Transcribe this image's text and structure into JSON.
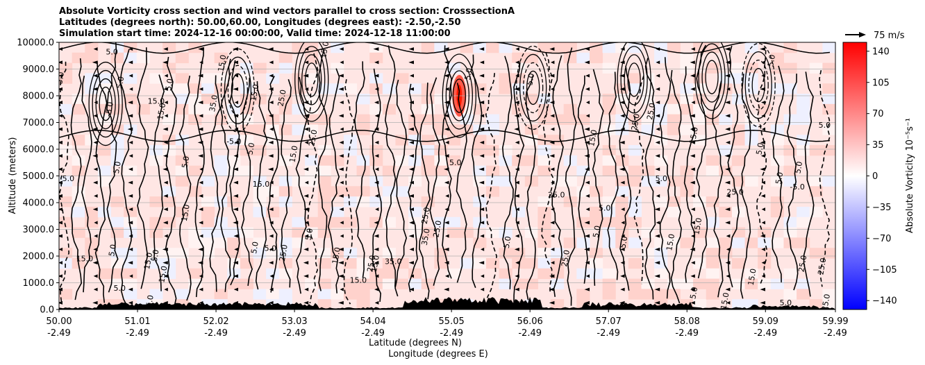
{
  "chart_data": {
    "type": "heatmap",
    "title_lines": [
      "Absolute Vorticity cross section and wind vectors parallel to cross section: CrosssectionA",
      "Latitudes (degrees north): 50.00,60.00, Longitudes (degrees east): -2.50,-2.50",
      "Simulation start time: 2024-12-16 00:00:00, Valid time: 2024-12-18 11:00:00"
    ],
    "ylabel": "Altitude (meters)",
    "xlabel_lat": "Latitude (degrees N)",
    "xlabel_lon": "Longitude (degrees E)",
    "ylim": [
      0,
      10000
    ],
    "y_ticks": [
      "0.0",
      "1000.0",
      "2000.0",
      "3000.0",
      "4000.0",
      "5000.0",
      "6000.0",
      "7000.0",
      "8000.0",
      "9000.0",
      "10000.0"
    ],
    "y_tick_values": [
      0,
      1000,
      2000,
      3000,
      4000,
      5000,
      6000,
      7000,
      8000,
      9000,
      10000
    ],
    "xlim": [
      50.0,
      59.99
    ],
    "x_ticks": [
      {
        "lat": 50.0,
        "lat_label": "50.00",
        "lon_label": "-2.49"
      },
      {
        "lat": 51.01,
        "lat_label": "51.01",
        "lon_label": "-2.49"
      },
      {
        "lat": 52.02,
        "lat_label": "52.02",
        "lon_label": "-2.49"
      },
      {
        "lat": 53.03,
        "lat_label": "53.03",
        "lon_label": "-2.49"
      },
      {
        "lat": 54.04,
        "lat_label": "54.04",
        "lon_label": "-2.49"
      },
      {
        "lat": 55.05,
        "lat_label": "55.05",
        "lon_label": "-2.49"
      },
      {
        "lat": 56.06,
        "lat_label": "56.06",
        "lon_label": "-2.49"
      },
      {
        "lat": 57.07,
        "lat_label": "57.07",
        "lon_label": "-2.49"
      },
      {
        "lat": 58.08,
        "lat_label": "58.08",
        "lon_label": "-2.49"
      },
      {
        "lat": 59.09,
        "lat_label": "59.09",
        "lon_label": "-2.49"
      },
      {
        "lat": 59.99,
        "lat_label": "59.99",
        "lon_label": "-2.49"
      }
    ],
    "grid": true,
    "colorbar": {
      "label": "Absolute Vorticity 10⁻⁵s⁻¹",
      "range": [
        -150,
        150
      ],
      "ticks": [
        "−140",
        "−105",
        "−70",
        "−35",
        "0",
        "35",
        "70",
        "105",
        "140"
      ],
      "tick_values": [
        -140,
        -105,
        -70,
        -35,
        0,
        35,
        70,
        105,
        140
      ],
      "colormap": "bwr",
      "color_low": "#0000ff",
      "color_mid": "#ffffff",
      "color_high": "#ff0000"
    },
    "quiver_key": {
      "label": "75 m/s",
      "value": 75
    },
    "vector_direction": "toward lower latitude (left)",
    "contour_levels_solid": [
      5.0,
      15.0,
      25.0,
      35.0
    ],
    "contour_levels_dashed": [
      -5.0
    ],
    "contour_labels": [
      {
        "lat": 50.68,
        "z": 9540,
        "text": "5.0"
      },
      {
        "lat": 50.82,
        "z": 8480,
        "text": "5.0"
      },
      {
        "lat": 50.05,
        "z": 8650,
        "text": "5.0"
      },
      {
        "lat": 50.68,
        "z": 7480,
        "text": "-5.0"
      },
      {
        "lat": 51.25,
        "z": 7700,
        "text": "15.0"
      },
      {
        "lat": 51.35,
        "z": 7400,
        "text": "15.0"
      },
      {
        "lat": 51.45,
        "z": 8400,
        "text": "5.0"
      },
      {
        "lat": 50.78,
        "z": 5300,
        "text": "5.0"
      },
      {
        "lat": 50.12,
        "z": 4800,
        "text": "5.0"
      },
      {
        "lat": 51.66,
        "z": 5500,
        "text": "5.0"
      },
      {
        "lat": 51.66,
        "z": 3600,
        "text": "15.0"
      },
      {
        "lat": 50.72,
        "z": 2200,
        "text": "5.0"
      },
      {
        "lat": 50.33,
        "z": 1800,
        "text": "15.0"
      },
      {
        "lat": 51.18,
        "z": 1800,
        "text": "15.0"
      },
      {
        "lat": 51.27,
        "z": 2000,
        "text": "5.0"
      },
      {
        "lat": 51.37,
        "z": 1300,
        "text": "15.0"
      },
      {
        "lat": 50.78,
        "z": 700,
        "text": "5.0"
      },
      {
        "lat": 51.2,
        "z": 300,
        "text": "5.0"
      },
      {
        "lat": 52.13,
        "z": 9200,
        "text": "15.0"
      },
      {
        "lat": 52.02,
        "z": 7700,
        "text": "35.0"
      },
      {
        "lat": 52.25,
        "z": 6200,
        "text": "-5.0"
      },
      {
        "lat": 52.55,
        "z": 8100,
        "text": "15.0"
      },
      {
        "lat": 52.9,
        "z": 7900,
        "text": "25.0"
      },
      {
        "lat": 52.5,
        "z": 6000,
        "text": "5.0"
      },
      {
        "lat": 52.6,
        "z": 4600,
        "text": "15.0"
      },
      {
        "lat": 53.3,
        "z": 6400,
        "text": "25.0"
      },
      {
        "lat": 53.05,
        "z": 5800,
        "text": "15.0"
      },
      {
        "lat": 52.55,
        "z": 2300,
        "text": "5.0"
      },
      {
        "lat": 52.72,
        "z": 2200,
        "text": "5.0"
      },
      {
        "lat": 52.92,
        "z": 2100,
        "text": "25.0"
      },
      {
        "lat": 53.25,
        "z": 2800,
        "text": "5.0"
      },
      {
        "lat": 53.6,
        "z": 2000,
        "text": "15.0"
      },
      {
        "lat": 53.85,
        "z": 1000,
        "text": "15.0"
      },
      {
        "lat": 53.45,
        "z": 9700,
        "text": "15.0"
      },
      {
        "lat": 54.05,
        "z": 1700,
        "text": "25.0"
      },
      {
        "lat": 54.1,
        "z": 1700,
        "text": "15.0"
      },
      {
        "lat": 54.3,
        "z": 1700,
        "text": "35.0"
      },
      {
        "lat": 54.75,
        "z": 3500,
        "text": "25.0"
      },
      {
        "lat": 54.9,
        "z": 3000,
        "text": "25.0"
      },
      {
        "lat": 54.75,
        "z": 2700,
        "text": "35.0"
      },
      {
        "lat": 55.1,
        "z": 5400,
        "text": "5.0"
      },
      {
        "lat": 55.3,
        "z": 8800,
        "text": "5.0"
      },
      {
        "lat": 55.8,
        "z": 2500,
        "text": "5.0"
      },
      {
        "lat": 56.1,
        "z": 8600,
        "text": "5.0"
      },
      {
        "lat": 56.4,
        "z": 4200,
        "text": "25.0"
      },
      {
        "lat": 56.55,
        "z": 1900,
        "text": "25.0"
      },
      {
        "lat": 56.9,
        "z": 6400,
        "text": "15.0"
      },
      {
        "lat": 56.95,
        "z": 2900,
        "text": "5.0"
      },
      {
        "lat": 57.02,
        "z": 3700,
        "text": "5.0"
      },
      {
        "lat": 57.3,
        "z": 2500,
        "text": "5.0"
      },
      {
        "lat": 57.45,
        "z": 7000,
        "text": "25.0"
      },
      {
        "lat": 57.65,
        "z": 7400,
        "text": "25.0"
      },
      {
        "lat": 57.75,
        "z": 4800,
        "text": "5.0"
      },
      {
        "lat": 57.9,
        "z": 2500,
        "text": "15.0"
      },
      {
        "lat": 58.2,
        "z": 6500,
        "text": "15.0"
      },
      {
        "lat": 58.25,
        "z": 3100,
        "text": "15.0"
      },
      {
        "lat": 58.7,
        "z": 4300,
        "text": "25.0"
      },
      {
        "lat": 59.05,
        "z": 6000,
        "text": "5.0"
      },
      {
        "lat": 59.2,
        "z": 9300,
        "text": "5.0"
      },
      {
        "lat": 59.3,
        "z": 4900,
        "text": "5.0"
      },
      {
        "lat": 59.5,
        "z": 4500,
        "text": "-5.0"
      },
      {
        "lat": 59.55,
        "z": 5300,
        "text": "5.0"
      },
      {
        "lat": 59.6,
        "z": 1700,
        "text": "25.0"
      },
      {
        "lat": 59.85,
        "z": 1600,
        "text": "25.0"
      },
      {
        "lat": 59.85,
        "z": 6800,
        "text": "5.0"
      },
      {
        "lat": 58.95,
        "z": 1200,
        "text": "15.0"
      },
      {
        "lat": 58.2,
        "z": 600,
        "text": "5.0"
      },
      {
        "lat": 58.6,
        "z": 300,
        "text": "15.0"
      },
      {
        "lat": 59.35,
        "z": 150,
        "text": "5.0"
      },
      {
        "lat": 59.9,
        "z": 250,
        "text": "25.0"
      }
    ]
  }
}
